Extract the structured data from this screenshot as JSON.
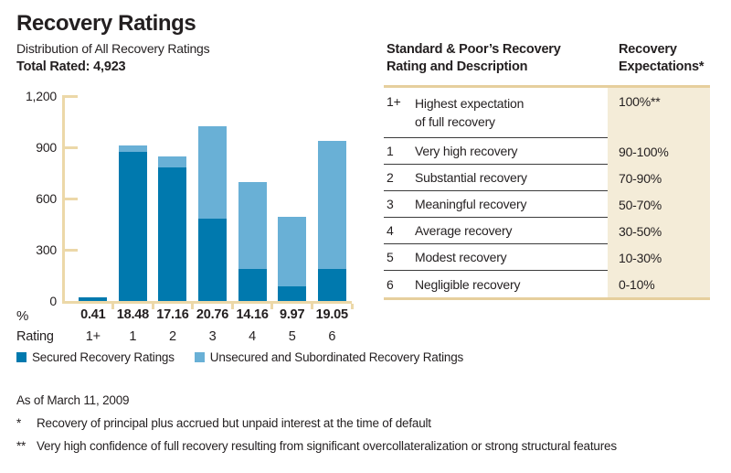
{
  "title": "Recovery Ratings",
  "subtitle": "Distribution of All Recovery Ratings",
  "total_rated_label": "Total Rated: 4,923",
  "colors": {
    "secured": "#0079ae",
    "unsecured": "#69b0d6",
    "axis_tan": "#ecd8a8",
    "table_rule_tan": "#e6cf9d",
    "table_beige": "#f4ecd8",
    "text": "#231f20"
  },
  "chart_data": {
    "type": "bar",
    "stacked": true,
    "title": "Distribution of All Recovery Ratings",
    "total_rated": 4923,
    "categories": [
      "1+",
      "1",
      "2",
      "3",
      "4",
      "5",
      "6"
    ],
    "series": [
      {
        "name": "Secured Recovery Ratings",
        "color": "#0079ae",
        "values": [
          20,
          875,
          780,
          480,
          190,
          85,
          190
        ]
      },
      {
        "name": "Unsecured and Subordinated Recovery Ratings",
        "color": "#69b0d6",
        "values": [
          0,
          35,
          65,
          542,
          507,
          406,
          748
        ]
      }
    ],
    "totals": [
      20,
      910,
      845,
      1022,
      697,
      491,
      938
    ],
    "percent_labels": [
      "0.41",
      "18.48",
      "17.16",
      "20.76",
      "14.16",
      "9.97",
      "19.05"
    ],
    "xlabel_rows": {
      "percent": "%",
      "rating": "Rating"
    },
    "ylim": [
      0,
      1200
    ],
    "yticks": [
      1200,
      900,
      600,
      300,
      0
    ],
    "ytick_labels": [
      "1,200",
      "900",
      "600",
      "300",
      "0"
    ],
    "legend_position": "bottom",
    "grid": false
  },
  "table": {
    "header": {
      "col1_line1": "Standard & Poor’s Recovery",
      "col1_line2": "Rating and Description",
      "col2_line1": "Recovery",
      "col2_line2": "Expectations*"
    },
    "rows": [
      {
        "rating": "1+",
        "description": "Highest expectation\nof full recovery",
        "expectation": "100%**"
      },
      {
        "rating": "1",
        "description": "Very high recovery",
        "expectation": "90-100%"
      },
      {
        "rating": "2",
        "description": "Substantial recovery",
        "expectation": "70-90%"
      },
      {
        "rating": "3",
        "description": "Meaningful recovery",
        "expectation": "50-70%"
      },
      {
        "rating": "4",
        "description": "Average recovery",
        "expectation": "30-50%"
      },
      {
        "rating": "5",
        "description": "Modest recovery",
        "expectation": "10-30%"
      },
      {
        "rating": "6",
        "description": "Negligible recovery",
        "expectation": "0-10%"
      }
    ]
  },
  "footer": {
    "as_of": "As of March 11, 2009",
    "footnotes": [
      {
        "marker": "*",
        "text": "Recovery of principal plus accrued but unpaid interest at the time of default"
      },
      {
        "marker": "**",
        "text": "Very high confidence of full recovery resulting from significant overcollateralization or strong structural features"
      }
    ]
  }
}
